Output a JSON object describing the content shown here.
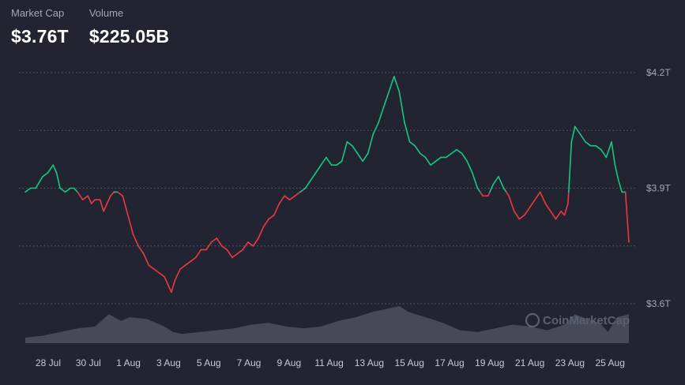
{
  "stats": {
    "market_cap_label": "Market Cap",
    "market_cap_value": "$3.76T",
    "volume_label": "Volume",
    "volume_value": "$225.05B"
  },
  "watermark": "CoinMarketCap",
  "colors": {
    "up": "#16c784",
    "down": "#ea3943",
    "background": "#222531",
    "grid": "#5a5f70",
    "volume": "#4a4e5c"
  },
  "chart_data": {
    "type": "line",
    "y_axis_ticks": [
      "$4.2T",
      "$3.9T",
      "$3.6T"
    ],
    "ylim": [
      3.6,
      4.2
    ],
    "baseline": 3.89,
    "grid": true,
    "x_tick_labels": [
      "28 Jul",
      "30 Jul",
      "1 Aug",
      "3 Aug",
      "5 Aug",
      "7 Aug",
      "9 Aug",
      "11 Aug",
      "13 Aug",
      "15 Aug",
      "17 Aug",
      "19 Aug",
      "21 Aug",
      "23 Aug",
      "25 Aug"
    ],
    "series": [
      {
        "name": "",
        "points": [
          [
            27.0,
            3.89
          ],
          [
            27.3,
            3.9
          ],
          [
            27.6,
            3.9
          ],
          [
            28.0,
            3.93
          ],
          [
            28.3,
            3.94
          ],
          [
            28.6,
            3.96
          ],
          [
            28.8,
            3.94
          ],
          [
            29.0,
            3.9
          ],
          [
            29.3,
            3.89
          ],
          [
            29.6,
            3.9
          ],
          [
            29.8,
            3.9
          ],
          [
            30.0,
            3.89
          ],
          [
            30.3,
            3.87
          ],
          [
            30.6,
            3.88
          ],
          [
            30.8,
            3.86
          ],
          [
            31.0,
            3.87
          ],
          [
            31.3,
            3.87
          ],
          [
            31.5,
            3.84
          ],
          [
            31.7,
            3.86
          ],
          [
            31.9,
            3.88
          ],
          [
            32.1,
            3.89
          ],
          [
            32.3,
            3.89
          ],
          [
            32.6,
            3.88
          ],
          [
            32.9,
            3.83
          ],
          [
            33.2,
            3.78
          ],
          [
            33.5,
            3.75
          ],
          [
            33.8,
            3.73
          ],
          [
            34.1,
            3.7
          ],
          [
            34.4,
            3.69
          ],
          [
            34.7,
            3.68
          ],
          [
            35.0,
            3.67
          ],
          [
            35.2,
            3.65
          ],
          [
            35.4,
            3.63
          ],
          [
            35.6,
            3.66
          ],
          [
            35.9,
            3.69
          ],
          [
            36.2,
            3.7
          ],
          [
            36.5,
            3.71
          ],
          [
            36.8,
            3.72
          ],
          [
            37.1,
            3.74
          ],
          [
            37.4,
            3.74
          ],
          [
            37.7,
            3.76
          ],
          [
            38.0,
            3.77
          ],
          [
            38.3,
            3.75
          ],
          [
            38.6,
            3.74
          ],
          [
            38.9,
            3.72
          ],
          [
            39.2,
            3.73
          ],
          [
            39.5,
            3.74
          ],
          [
            39.8,
            3.76
          ],
          [
            40.1,
            3.75
          ],
          [
            40.4,
            3.77
          ],
          [
            40.7,
            3.8
          ],
          [
            41.0,
            3.82
          ],
          [
            41.3,
            3.83
          ],
          [
            41.6,
            3.86
          ],
          [
            41.9,
            3.88
          ],
          [
            42.2,
            3.87
          ],
          [
            42.5,
            3.88
          ],
          [
            42.8,
            3.89
          ],
          [
            43.1,
            3.9
          ],
          [
            43.4,
            3.92
          ],
          [
            43.7,
            3.94
          ],
          [
            44.0,
            3.96
          ],
          [
            44.3,
            3.98
          ],
          [
            44.6,
            3.96
          ],
          [
            44.9,
            3.96
          ],
          [
            45.2,
            3.97
          ],
          [
            45.5,
            4.02
          ],
          [
            45.8,
            4.01
          ],
          [
            46.1,
            3.99
          ],
          [
            46.4,
            3.97
          ],
          [
            46.7,
            3.99
          ],
          [
            47.0,
            4.04
          ],
          [
            47.3,
            4.07
          ],
          [
            47.6,
            4.11
          ],
          [
            47.9,
            4.15
          ],
          [
            48.2,
            4.19
          ],
          [
            48.5,
            4.15
          ],
          [
            48.8,
            4.07
          ],
          [
            49.1,
            4.02
          ],
          [
            49.4,
            4.01
          ],
          [
            49.7,
            3.99
          ],
          [
            50.0,
            3.98
          ],
          [
            50.3,
            3.96
          ],
          [
            50.6,
            3.97
          ],
          [
            50.9,
            3.98
          ],
          [
            51.2,
            3.98
          ],
          [
            51.5,
            3.99
          ],
          [
            51.8,
            4.0
          ],
          [
            52.1,
            3.99
          ],
          [
            52.4,
            3.97
          ],
          [
            52.7,
            3.94
          ],
          [
            53.0,
            3.9
          ],
          [
            53.3,
            3.88
          ],
          [
            53.6,
            3.88
          ],
          [
            53.9,
            3.91
          ],
          [
            54.2,
            3.93
          ],
          [
            54.5,
            3.9
          ],
          [
            54.8,
            3.88
          ],
          [
            55.1,
            3.84
          ],
          [
            55.4,
            3.82
          ],
          [
            55.7,
            3.83
          ],
          [
            56.0,
            3.85
          ],
          [
            56.3,
            3.87
          ],
          [
            56.6,
            3.89
          ],
          [
            56.9,
            3.86
          ],
          [
            57.2,
            3.84
          ],
          [
            57.5,
            3.82
          ],
          [
            57.8,
            3.84
          ],
          [
            58.0,
            3.83
          ],
          [
            58.2,
            3.86
          ],
          [
            58.4,
            4.02
          ],
          [
            58.6,
            4.06
          ],
          [
            58.9,
            4.04
          ],
          [
            59.2,
            4.02
          ],
          [
            59.5,
            4.01
          ],
          [
            59.8,
            4.01
          ],
          [
            60.1,
            4.0
          ],
          [
            60.4,
            3.98
          ],
          [
            60.7,
            4.02
          ],
          [
            60.9,
            3.96
          ],
          [
            61.1,
            3.92
          ],
          [
            61.3,
            3.89
          ],
          [
            61.5,
            3.89
          ],
          [
            61.7,
            3.76
          ]
        ]
      }
    ],
    "volume": [
      [
        27.0,
        0.15
      ],
      [
        28.0,
        0.2
      ],
      [
        29.0,
        0.3
      ],
      [
        30.0,
        0.4
      ],
      [
        31.0,
        0.45
      ],
      [
        31.8,
        0.78
      ],
      [
        32.5,
        0.6
      ],
      [
        33.0,
        0.7
      ],
      [
        34.0,
        0.65
      ],
      [
        35.0,
        0.45
      ],
      [
        35.5,
        0.3
      ],
      [
        36.0,
        0.25
      ],
      [
        37.0,
        0.3
      ],
      [
        38.0,
        0.35
      ],
      [
        39.0,
        0.4
      ],
      [
        40.0,
        0.5
      ],
      [
        41.0,
        0.55
      ],
      [
        42.0,
        0.45
      ],
      [
        43.0,
        0.4
      ],
      [
        44.0,
        0.45
      ],
      [
        45.0,
        0.6
      ],
      [
        46.0,
        0.7
      ],
      [
        47.0,
        0.85
      ],
      [
        48.0,
        0.95
      ],
      [
        48.5,
        1.0
      ],
      [
        49.0,
        0.85
      ],
      [
        50.0,
        0.7
      ],
      [
        51.0,
        0.55
      ],
      [
        52.0,
        0.35
      ],
      [
        53.0,
        0.3
      ],
      [
        54.0,
        0.4
      ],
      [
        55.0,
        0.5
      ],
      [
        56.0,
        0.45
      ],
      [
        57.0,
        0.35
      ],
      [
        58.0,
        0.5
      ],
      [
        58.6,
        0.78
      ],
      [
        59.3,
        0.65
      ],
      [
        60.0,
        0.55
      ],
      [
        60.5,
        0.3
      ],
      [
        61.0,
        0.7
      ],
      [
        61.7,
        0.78
      ]
    ]
  }
}
